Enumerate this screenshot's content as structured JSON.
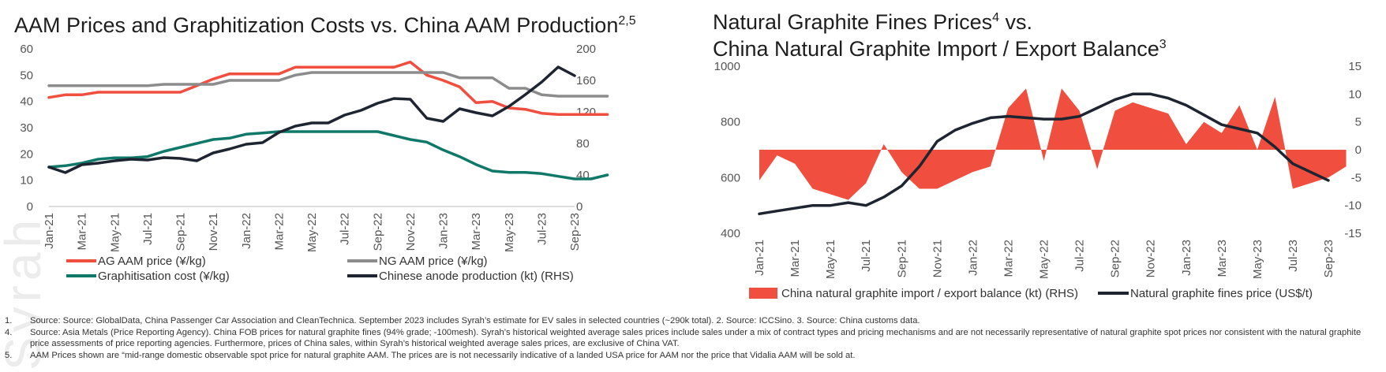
{
  "watermark": {
    "text": "Syrah Resources"
  },
  "chart_data": [
    {
      "type": "line",
      "title": "AAM Prices and Graphitization Costs vs. China AAM Production",
      "title_superscript": "2,5",
      "xlabel": "",
      "ylabel_left": "",
      "ylabel_right": "",
      "ylim_left": [
        0,
        60
      ],
      "ylim_right": [
        0,
        200
      ],
      "yticks_left": [
        "0",
        "10",
        "20",
        "30",
        "40",
        "50",
        "60"
      ],
      "yticks_right": [
        "0",
        "40",
        "80",
        "120",
        "160",
        "200"
      ],
      "x_tick_labels": [
        "Jan-21",
        "Mar-21",
        "May-21",
        "Jul-21",
        "Sep-21",
        "Nov-21",
        "Jan-22",
        "Mar-22",
        "May-22",
        "Jul-22",
        "Sep-22",
        "Nov-22",
        "Jan-23",
        "Mar-23",
        "May-23",
        "Jul-23",
        "Sep-23"
      ],
      "legend_position": "bottom",
      "series": [
        {
          "name": "AG AAM price (¥/kg)",
          "axis": "left",
          "color": "#f04e3e",
          "values": [
            41.5,
            42.5,
            42.5,
            43.5,
            43.5,
            43.5,
            43.5,
            43.5,
            43.5,
            46,
            48.5,
            50.5,
            50.5,
            50.5,
            50.5,
            53,
            53,
            53,
            53,
            53,
            53,
            53,
            55,
            50,
            48,
            45.5,
            39.5,
            40,
            37.5,
            37,
            35.5,
            35,
            35,
            35,
            35
          ]
        },
        {
          "name": "NG AAM price (¥/kg)",
          "axis": "left",
          "color": "#8c8c8c",
          "values": [
            46,
            46,
            46,
            46,
            46,
            46,
            46,
            46.5,
            46.5,
            46.5,
            46.5,
            48,
            48,
            48,
            48,
            50,
            51,
            51,
            51,
            51,
            51,
            51,
            51,
            51,
            51,
            49,
            49,
            49,
            45,
            45,
            42.5,
            42,
            42,
            42,
            42
          ]
        },
        {
          "name": "Graphitisation cost (¥/kg)",
          "axis": "left",
          "color": "#0f7868",
          "values": [
            15,
            15.5,
            16.5,
            18,
            18.5,
            18.5,
            19,
            21,
            22.5,
            24,
            25.5,
            26,
            27.5,
            28,
            28.5,
            28.5,
            28.5,
            28.5,
            28.5,
            28.5,
            28.5,
            27,
            25.5,
            24.5,
            21.5,
            19,
            16,
            13.5,
            13,
            13,
            12.5,
            11.5,
            10.5,
            10.5,
            12
          ]
        },
        {
          "name": "Chinese anode production (kt) (RHS)",
          "axis": "right",
          "color": "#1e2430",
          "values": [
            50,
            43,
            53,
            55,
            58,
            60,
            59,
            62,
            61,
            58,
            68,
            73,
            79,
            81,
            94,
            102,
            106,
            106,
            116,
            122,
            131,
            137,
            136,
            112,
            108,
            124,
            119,
            115,
            127,
            142,
            158,
            177,
            166
          ]
        }
      ]
    },
    {
      "type": "area+line",
      "title_line1": "Natural Graphite Fines Prices",
      "title_line1_superscript": "4",
      "title_line1_suffix": " vs.",
      "title_line2": "China Natural Graphite Import / Export Balance",
      "title_line2_superscript": "3",
      "xlabel": "",
      "ylim_left": [
        400,
        1000
      ],
      "ylim_right": [
        -15,
        15
      ],
      "yticks_left": [
        "400",
        "600",
        "800",
        "1000"
      ],
      "yticks_right": [
        "-15",
        "-10",
        "-5",
        "0",
        "5",
        "10",
        "15"
      ],
      "x_tick_labels": [
        "Jan-21",
        "Mar-21",
        "May-21",
        "Jul-21",
        "Sep-21",
        "Nov-21",
        "Jan-22",
        "Mar-22",
        "May-22",
        "Jul-22",
        "Sep-22",
        "Nov-22",
        "Jan-23",
        "Mar-23",
        "May-23",
        "Jul-23",
        "Sep-23"
      ],
      "legend_position": "bottom",
      "series": [
        {
          "name": "China natural graphite import / export balance (kt) (RHS)",
          "axis": "right",
          "color": "#f04e3e",
          "kind": "area",
          "values": [
            -5.5,
            -1,
            -2.5,
            -7,
            -8,
            -9,
            -6,
            1,
            -4,
            -7,
            -7,
            -5.5,
            -4,
            -3,
            7.5,
            11,
            -2,
            11,
            7,
            -3.5,
            7,
            8.5,
            7.5,
            6.5,
            1,
            5,
            3,
            8,
            0,
            9.5,
            -7,
            -6,
            -5,
            -3
          ]
        },
        {
          "name": "Natural graphite fines price (US$/t)",
          "axis": "left",
          "color": "#1e2430",
          "kind": "line",
          "values": [
            470,
            480,
            490,
            500,
            500,
            510,
            500,
            530,
            570,
            640,
            730,
            770,
            795,
            815,
            820,
            815,
            810,
            810,
            820,
            850,
            880,
            900,
            900,
            885,
            860,
            825,
            790,
            775,
            760,
            710,
            650,
            620,
            590
          ]
        }
      ]
    }
  ],
  "legend1": [
    {
      "label": "AG AAM price (¥/kg)"
    },
    {
      "label": "NG AAM price (¥/kg)"
    },
    {
      "label": "Graphitisation cost (¥/kg)"
    },
    {
      "label": "Chinese anode production (kt) (RHS)"
    }
  ],
  "legend2": [
    {
      "label": "China natural graphite import / export balance (kt) (RHS)"
    },
    {
      "label": "Natural graphite fines price (US$/t)"
    }
  ],
  "footnotes": [
    {
      "num": "1.",
      "text": "Source: Source: GlobalData, China Passenger Car Association and CleanTechnica. September 2023 includes Syrah’s estimate for EV sales in selected countries (~290k total).     2.     Source: ICCSino.    3.     Source: China customs data."
    },
    {
      "num": "4.",
      "text": "Source: Asia Metals (Price Reporting Agency). China FOB prices for natural graphite fines (94% grade; -100mesh). Syrah’s historical weighted average sales prices include sales under a mix of contract types and pricing mechanisms and are not necessarily representative of natural graphite spot prices nor consistent with the natural graphite price assessments of price reporting agencies. Furthermore, prices of China sales, within Syrah’s historical weighted average sales prices, are exclusive of China VAT."
    },
    {
      "num": "5.",
      "text": "AAM Prices shown are “mid-range domestic observable spot price for natural graphite AAM. The prices are is not necessarily indicative of a landed USA price for AAM nor the price that Vidalia AAM will be sold at."
    }
  ]
}
